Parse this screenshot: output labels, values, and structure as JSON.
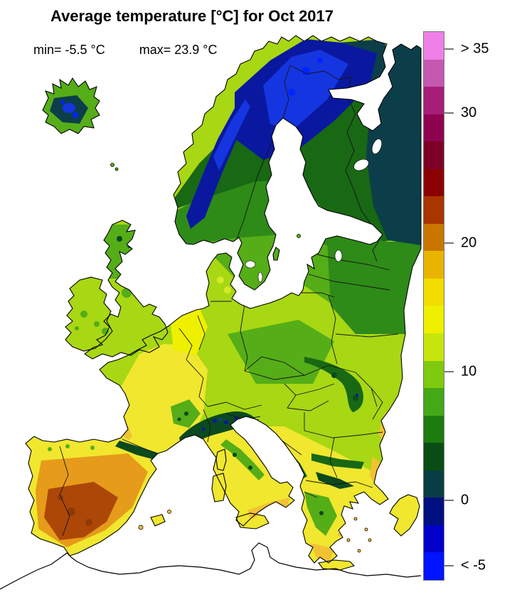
{
  "title": "Average temperature [°C] for Oct 2017",
  "stats": {
    "min": "min= -5.5 °C",
    "max": "max= 23.9 °C"
  },
  "colorbar": {
    "outline": "#787878",
    "cells_top_to_bottom": [
      "#EE80E8",
      "#C658B2",
      "#A61E78",
      "#8F0250",
      "#7D0026",
      "#8B0000",
      "#A93500",
      "#C97700",
      "#E8B400",
      "#F3DC00",
      "#EFEF00",
      "#C6E60D",
      "#7FC90F",
      "#45A816",
      "#1E7B0E",
      "#0A4D14",
      "#083D46",
      "#001080",
      "#0000C8",
      "#0014FF"
    ],
    "ticks": [
      {
        "label": "> 35",
        "pos_pct": 3.2
      },
      {
        "label": "30",
        "pos_pct": 14.9
      },
      {
        "label": "20",
        "pos_pct": 38.7
      },
      {
        "label": "10",
        "pos_pct": 62.1
      },
      {
        "label": "0",
        "pos_pct": 85.6
      },
      {
        "label": "< -5",
        "pos_pct": 97.5
      }
    ]
  },
  "map": {
    "colors": {
      "sea": "#FFFFFF",
      "coast": "#000000",
      "border": "#141414",
      "base": "#A8D714",
      "yellow": "#F0E72E",
      "bright_yellow": "#EFF000",
      "yg_light": "#D6E82A",
      "golden": "#F1C233",
      "orange": "#E69B1A",
      "dark_orange": "#AC4708",
      "darker_orange": "#8F3A05",
      "green": "#55AD18",
      "mid_green": "#2E8B18",
      "dark_green": "#186814",
      "deep_green": "#0B4A1E",
      "teal": "#0C3E4A",
      "navy": "#0A18A0",
      "blue": "#1535E0",
      "bright_blue": "#0026FF"
    }
  }
}
